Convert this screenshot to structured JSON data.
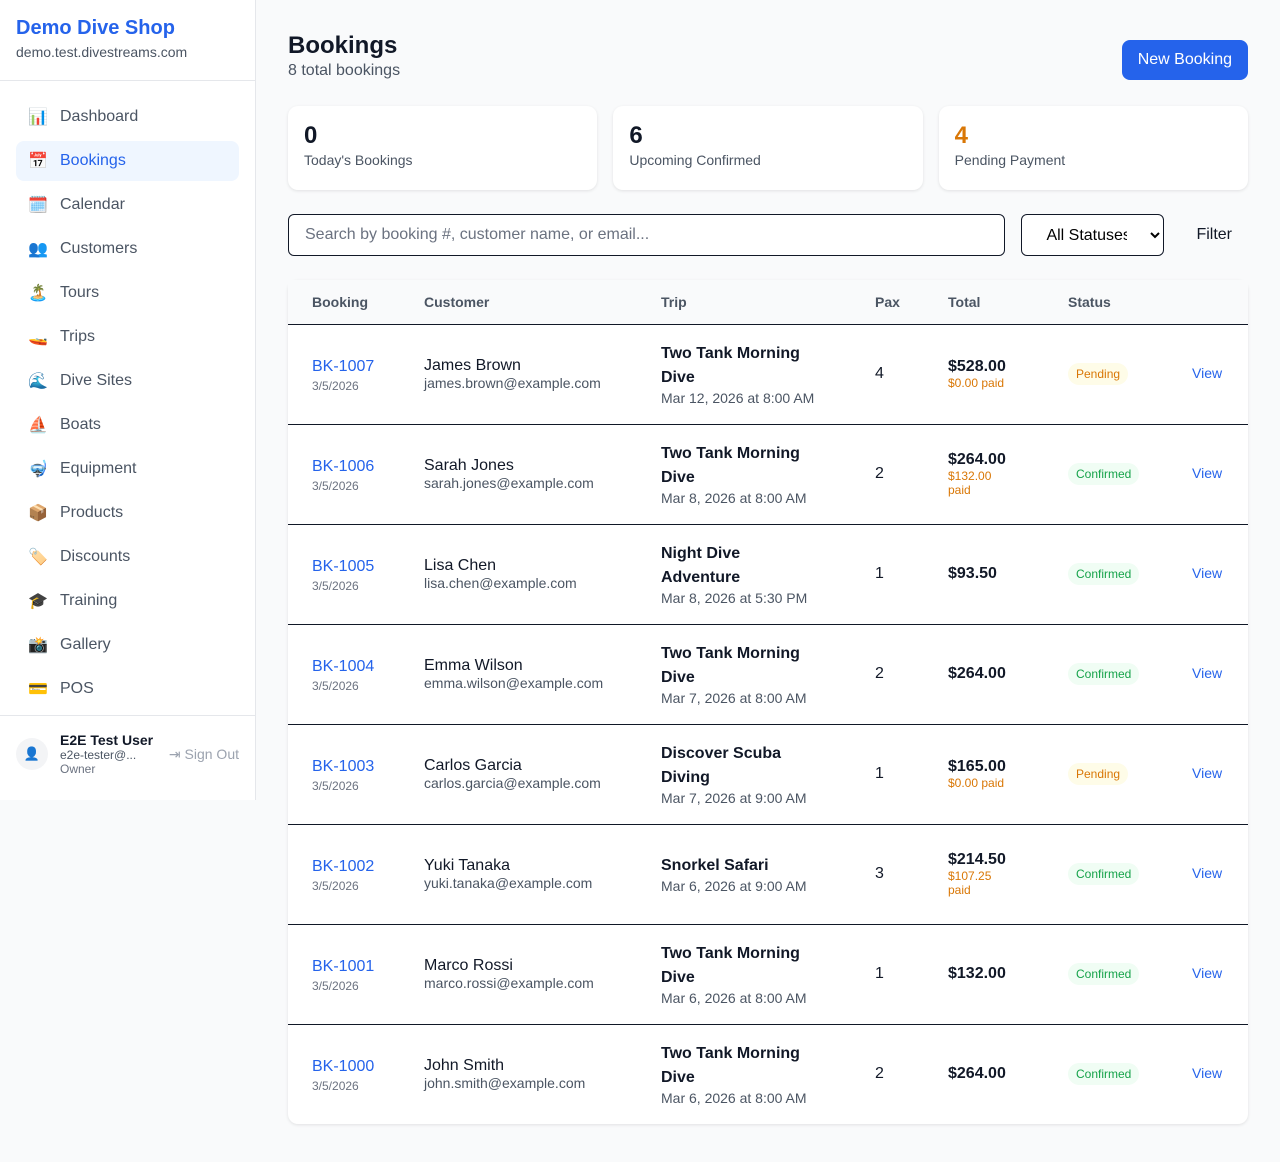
{
  "sidebar": {
    "shop_name": "Demo Dive Shop",
    "domain": "demo.test.divestreams.com",
    "items": [
      {
        "label": "Dashboard",
        "icon": "📊",
        "active": false
      },
      {
        "label": "Bookings",
        "icon": "📅",
        "active": true
      },
      {
        "label": "Calendar",
        "icon": "🗓️",
        "active": false
      },
      {
        "label": "Customers",
        "icon": "👥",
        "active": false
      },
      {
        "label": "Tours",
        "icon": "🏝️",
        "active": false
      },
      {
        "label": "Trips",
        "icon": "🚤",
        "active": false
      },
      {
        "label": "Dive Sites",
        "icon": "🌊",
        "active": false
      },
      {
        "label": "Boats",
        "icon": "⛵",
        "active": false
      },
      {
        "label": "Equipment",
        "icon": "🤿",
        "active": false
      },
      {
        "label": "Products",
        "icon": "📦",
        "active": false
      },
      {
        "label": "Discounts",
        "icon": "🏷️",
        "active": false
      },
      {
        "label": "Training",
        "icon": "🎓",
        "active": false
      },
      {
        "label": "Gallery",
        "icon": "📸",
        "active": false
      },
      {
        "label": "POS",
        "icon": "💳",
        "active": false
      }
    ],
    "user": {
      "name": "E2E Test User",
      "email": "e2e-tester@...",
      "role": "Owner",
      "sign_out": "Sign Out"
    }
  },
  "header": {
    "title": "Bookings",
    "subtitle": "8 total bookings",
    "new_button": "New Booking"
  },
  "stats": [
    {
      "value": "0",
      "label": "Today's Bookings",
      "color": "#111827"
    },
    {
      "value": "6",
      "label": "Upcoming Confirmed",
      "color": "#111827"
    },
    {
      "value": "4",
      "label": "Pending Payment",
      "color": "#d97706"
    }
  ],
  "filters": {
    "search_placeholder": "Search by booking #, customer name, or email...",
    "search_value": "",
    "status_selected": "All Statuses",
    "filter_button": "Filter"
  },
  "table": {
    "columns": [
      "Booking",
      "Customer",
      "Trip",
      "Pax",
      "Total",
      "Status",
      ""
    ],
    "rows": [
      {
        "id": "BK-1007",
        "date": "3/5/2026",
        "customer": "James Brown",
        "email": "james.brown@example.com",
        "trip": "Two Tank Morning Dive",
        "trip_date": "Mar 12, 2026 at 8:00 AM",
        "pax": "4",
        "total": "$528.00",
        "paid": "$0.00 paid",
        "status": "Pending",
        "action": "View"
      },
      {
        "id": "BK-1006",
        "date": "3/5/2026",
        "customer": "Sarah Jones",
        "email": "sarah.jones@example.com",
        "trip": "Two Tank Morning Dive",
        "trip_date": "Mar 8, 2026 at 8:00 AM",
        "pax": "2",
        "total": "$264.00",
        "paid": "$132.00 paid",
        "status": "Confirmed",
        "action": "View"
      },
      {
        "id": "BK-1005",
        "date": "3/5/2026",
        "customer": "Lisa Chen",
        "email": "lisa.chen@example.com",
        "trip": "Night Dive Adventure",
        "trip_date": "Mar 8, 2026 at 5:30 PM",
        "pax": "1",
        "total": "$93.50",
        "paid": "",
        "status": "Confirmed",
        "action": "View"
      },
      {
        "id": "BK-1004",
        "date": "3/5/2026",
        "customer": "Emma Wilson",
        "email": "emma.wilson@example.com",
        "trip": "Two Tank Morning Dive",
        "trip_date": "Mar 7, 2026 at 8:00 AM",
        "pax": "2",
        "total": "$264.00",
        "paid": "",
        "status": "Confirmed",
        "action": "View"
      },
      {
        "id": "BK-1003",
        "date": "3/5/2026",
        "customer": "Carlos Garcia",
        "email": "carlos.garcia@example.com",
        "trip": "Discover Scuba Diving",
        "trip_date": "Mar 7, 2026 at 9:00 AM",
        "pax": "1",
        "total": "$165.00",
        "paid": "$0.00 paid",
        "status": "Pending",
        "action": "View"
      },
      {
        "id": "BK-1002",
        "date": "3/5/2026",
        "customer": "Yuki Tanaka",
        "email": "yuki.tanaka@example.com",
        "trip": "Snorkel Safari",
        "trip_date": "Mar 6, 2026 at 9:00 AM",
        "pax": "3",
        "total": "$214.50",
        "paid": "$107.25 paid",
        "status": "Confirmed",
        "action": "View"
      },
      {
        "id": "BK-1001",
        "date": "3/5/2026",
        "customer": "Marco Rossi",
        "email": "marco.rossi@example.com",
        "trip": "Two Tank Morning Dive",
        "trip_date": "Mar 6, 2026 at 8:00 AM",
        "pax": "1",
        "total": "$132.00",
        "paid": "",
        "status": "Confirmed",
        "action": "View"
      },
      {
        "id": "BK-1000",
        "date": "3/5/2026",
        "customer": "John Smith",
        "email": "john.smith@example.com",
        "trip": "Two Tank Morning Dive",
        "trip_date": "Mar 6, 2026 at 8:00 AM",
        "pax": "2",
        "total": "$264.00",
        "paid": "",
        "status": "Confirmed",
        "action": "View"
      }
    ]
  }
}
